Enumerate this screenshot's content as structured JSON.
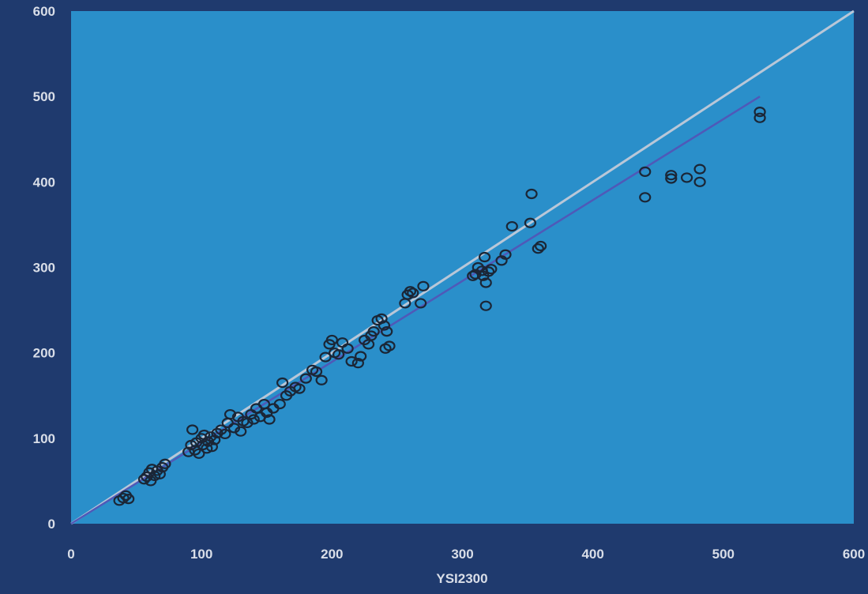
{
  "chart_data": {
    "type": "scatter",
    "title": "",
    "xlabel": "YSI2300",
    "ylabel": "",
    "xlim": [
      0,
      600
    ],
    "ylim": [
      0,
      600
    ],
    "xticks": [
      0,
      100,
      200,
      300,
      400,
      500,
      600
    ],
    "yticks": [
      0,
      100,
      200,
      300,
      400,
      500,
      600
    ],
    "grid": false,
    "legend": "none",
    "colors": {
      "page_background": "#1f3a6e",
      "plot_background": "#2a8fca",
      "identity_line": "#b9c7d8",
      "regression_line": "#4f59b8",
      "points": "#1b2636",
      "tick_labels": "#d9dee8"
    },
    "lines": [
      {
        "role": "identity",
        "x": [
          0,
          600
        ],
        "y": [
          0,
          600
        ]
      },
      {
        "role": "regression",
        "x": [
          0,
          528
        ],
        "y": [
          0,
          500
        ]
      }
    ],
    "points": [
      {
        "x": 37,
        "y": 27
      },
      {
        "x": 40,
        "y": 30
      },
      {
        "x": 42,
        "y": 33
      },
      {
        "x": 44,
        "y": 29
      },
      {
        "x": 56,
        "y": 52
      },
      {
        "x": 58,
        "y": 55
      },
      {
        "x": 60,
        "y": 60
      },
      {
        "x": 61,
        "y": 50
      },
      {
        "x": 62,
        "y": 64
      },
      {
        "x": 64,
        "y": 56
      },
      {
        "x": 66,
        "y": 62
      },
      {
        "x": 68,
        "y": 58
      },
      {
        "x": 70,
        "y": 66
      },
      {
        "x": 72,
        "y": 70
      },
      {
        "x": 90,
        "y": 84
      },
      {
        "x": 92,
        "y": 92
      },
      {
        "x": 93,
        "y": 110
      },
      {
        "x": 95,
        "y": 86
      },
      {
        "x": 96,
        "y": 95
      },
      {
        "x": 98,
        "y": 82
      },
      {
        "x": 100,
        "y": 100
      },
      {
        "x": 101,
        "y": 92
      },
      {
        "x": 102,
        "y": 104
      },
      {
        "x": 104,
        "y": 88
      },
      {
        "x": 105,
        "y": 96
      },
      {
        "x": 107,
        "y": 102
      },
      {
        "x": 108,
        "y": 90
      },
      {
        "x": 110,
        "y": 98
      },
      {
        "x": 112,
        "y": 106
      },
      {
        "x": 115,
        "y": 110
      },
      {
        "x": 118,
        "y": 105
      },
      {
        "x": 120,
        "y": 118
      },
      {
        "x": 122,
        "y": 128
      },
      {
        "x": 125,
        "y": 112
      },
      {
        "x": 128,
        "y": 125
      },
      {
        "x": 130,
        "y": 108
      },
      {
        "x": 132,
        "y": 120
      },
      {
        "x": 135,
        "y": 118
      },
      {
        "x": 138,
        "y": 128
      },
      {
        "x": 140,
        "y": 122
      },
      {
        "x": 142,
        "y": 135
      },
      {
        "x": 145,
        "y": 125
      },
      {
        "x": 148,
        "y": 140
      },
      {
        "x": 150,
        "y": 130
      },
      {
        "x": 152,
        "y": 122
      },
      {
        "x": 155,
        "y": 135
      },
      {
        "x": 160,
        "y": 140
      },
      {
        "x": 162,
        "y": 165
      },
      {
        "x": 165,
        "y": 150
      },
      {
        "x": 168,
        "y": 155
      },
      {
        "x": 172,
        "y": 160
      },
      {
        "x": 175,
        "y": 158
      },
      {
        "x": 180,
        "y": 170
      },
      {
        "x": 185,
        "y": 180
      },
      {
        "x": 188,
        "y": 178
      },
      {
        "x": 192,
        "y": 168
      },
      {
        "x": 195,
        "y": 195
      },
      {
        "x": 198,
        "y": 210
      },
      {
        "x": 200,
        "y": 215
      },
      {
        "x": 202,
        "y": 200
      },
      {
        "x": 205,
        "y": 198
      },
      {
        "x": 208,
        "y": 212
      },
      {
        "x": 212,
        "y": 205
      },
      {
        "x": 215,
        "y": 190
      },
      {
        "x": 220,
        "y": 188
      },
      {
        "x": 222,
        "y": 196
      },
      {
        "x": 225,
        "y": 215
      },
      {
        "x": 228,
        "y": 210
      },
      {
        "x": 230,
        "y": 220
      },
      {
        "x": 232,
        "y": 225
      },
      {
        "x": 235,
        "y": 238
      },
      {
        "x": 238,
        "y": 240
      },
      {
        "x": 240,
        "y": 232
      },
      {
        "x": 241,
        "y": 205
      },
      {
        "x": 242,
        "y": 225
      },
      {
        "x": 244,
        "y": 208
      },
      {
        "x": 256,
        "y": 258
      },
      {
        "x": 258,
        "y": 268
      },
      {
        "x": 260,
        "y": 272
      },
      {
        "x": 262,
        "y": 270
      },
      {
        "x": 268,
        "y": 258
      },
      {
        "x": 270,
        "y": 278
      },
      {
        "x": 308,
        "y": 290
      },
      {
        "x": 310,
        "y": 292
      },
      {
        "x": 312,
        "y": 300
      },
      {
        "x": 315,
        "y": 296
      },
      {
        "x": 316,
        "y": 290
      },
      {
        "x": 317,
        "y": 312
      },
      {
        "x": 318,
        "y": 282
      },
      {
        "x": 320,
        "y": 295
      },
      {
        "x": 322,
        "y": 298
      },
      {
        "x": 318,
        "y": 255
      },
      {
        "x": 330,
        "y": 308
      },
      {
        "x": 333,
        "y": 315
      },
      {
        "x": 338,
        "y": 348
      },
      {
        "x": 352,
        "y": 352
      },
      {
        "x": 353,
        "y": 386
      },
      {
        "x": 358,
        "y": 322
      },
      {
        "x": 360,
        "y": 325
      },
      {
        "x": 440,
        "y": 412
      },
      {
        "x": 440,
        "y": 382
      },
      {
        "x": 460,
        "y": 408
      },
      {
        "x": 460,
        "y": 404
      },
      {
        "x": 472,
        "y": 405
      },
      {
        "x": 482,
        "y": 400
      },
      {
        "x": 482,
        "y": 415
      },
      {
        "x": 528,
        "y": 482
      },
      {
        "x": 528,
        "y": 475
      }
    ]
  }
}
